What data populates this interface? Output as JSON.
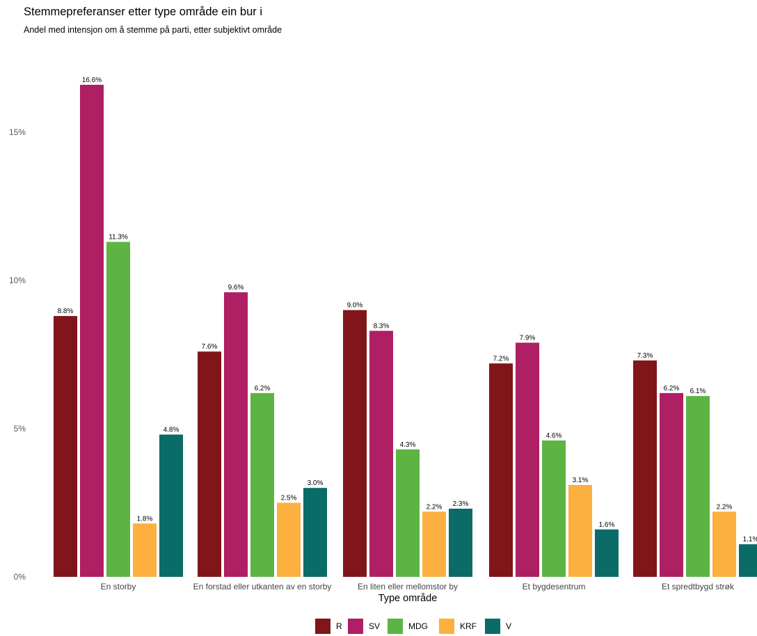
{
  "title": "Stemmepreferanser etter type område ein bur i",
  "subtitle": "Andel med intensjon om å stemme på parti, etter subjektivt område",
  "chart_data": {
    "type": "bar",
    "title": "Stemmepreferanser etter type område ein bur i",
    "subtitle": "Andel med intensjon om å stemme på parti, etter subjektivt område",
    "xlabel": "Type område",
    "ylabel": "",
    "ylim": [
      0,
      18
    ],
    "yticks": [
      0,
      5,
      10,
      15
    ],
    "ytick_labels": [
      "0%",
      "5%",
      "10%",
      "15%"
    ],
    "grid": false,
    "legend_position": "bottom",
    "categories": [
      "En storby",
      "En forstad eller utkanten av en storby",
      "En liten eller mellomstor by",
      "Et bygdesentrum",
      "Et spredtbygd strøk"
    ],
    "series": [
      {
        "name": "R",
        "color": "#80161a",
        "values": [
          8.8,
          7.6,
          9.0,
          7.2,
          7.3
        ],
        "labels": [
          "8.8%",
          "7.6%",
          "9.0%",
          "7.2%",
          "7.3%"
        ]
      },
      {
        "name": "SV",
        "color": "#ae1f63",
        "values": [
          16.6,
          9.6,
          8.3,
          7.9,
          6.2
        ],
        "labels": [
          "16.6%",
          "9.6%",
          "8.3%",
          "7.9%",
          "6.2%"
        ]
      },
      {
        "name": "MDG",
        "color": "#5db443",
        "values": [
          11.3,
          6.2,
          4.3,
          4.6,
          6.1
        ],
        "labels": [
          "11.3%",
          "6.2%",
          "4.3%",
          "4.6%",
          "6.1%"
        ]
      },
      {
        "name": "KRF",
        "color": "#fbb040",
        "values": [
          1.8,
          2.5,
          2.2,
          3.1,
          2.2
        ],
        "labels": [
          "1.8%",
          "2.5%",
          "2.2%",
          "3.1%",
          "2.2%"
        ]
      },
      {
        "name": "V",
        "color": "#0a6b67",
        "values": [
          4.8,
          3.0,
          2.3,
          1.6,
          1.1
        ],
        "labels": [
          "4.8%",
          "3.0%",
          "2.3%",
          "1.6%",
          "1.1%"
        ]
      }
    ]
  }
}
